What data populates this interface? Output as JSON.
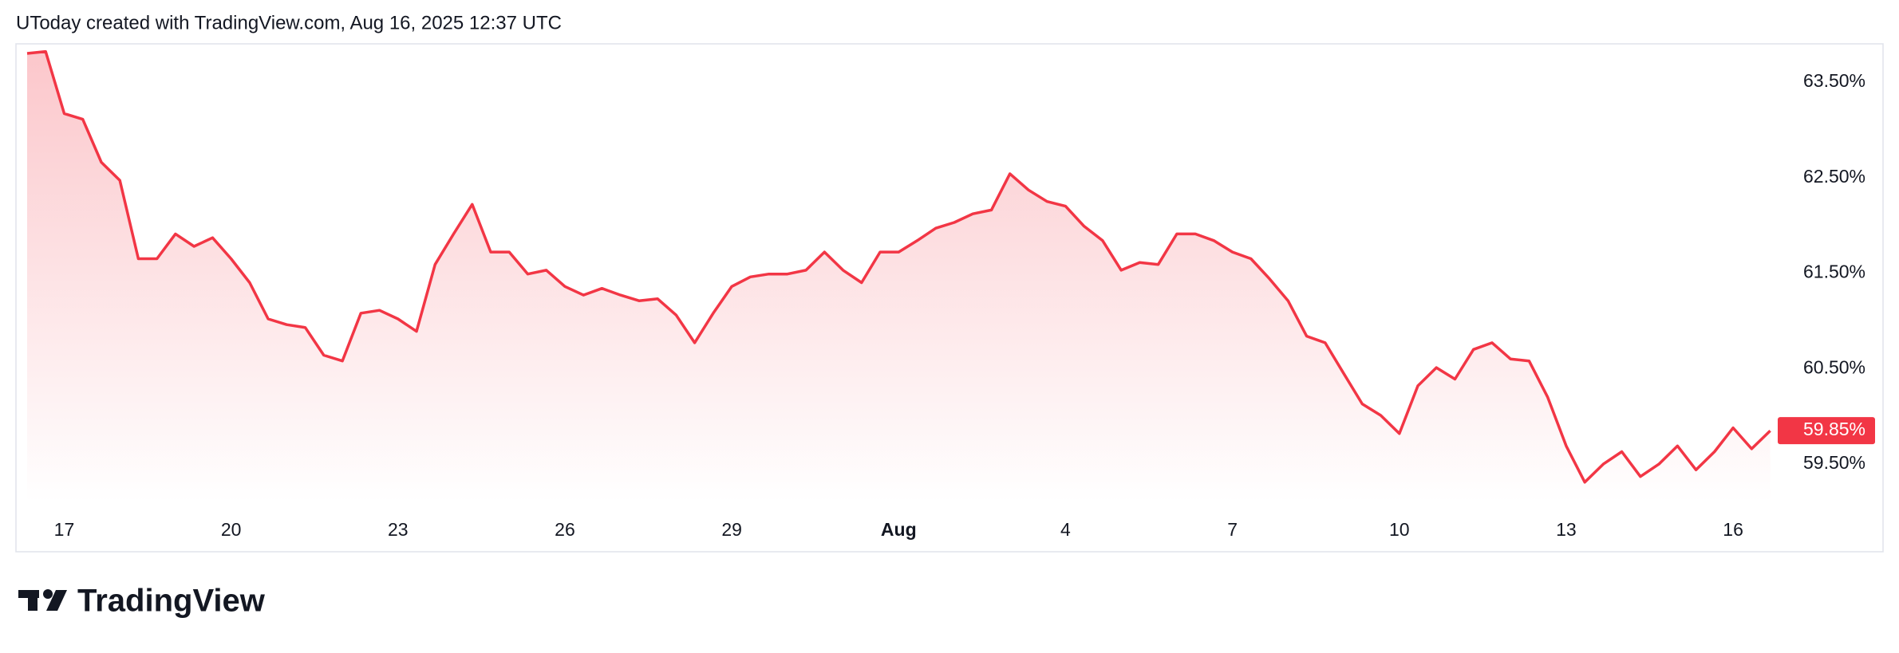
{
  "chart_data": {
    "type": "area",
    "title": "UToday created with TradingView.com, Aug 16, 2025 12:37 UTC",
    "brand": "TradingView",
    "categories": [
      null,
      null,
      "17",
      null,
      null,
      null,
      null,
      null,
      null,
      null,
      null,
      "20",
      null,
      null,
      null,
      null,
      null,
      null,
      null,
      null,
      "23",
      null,
      null,
      null,
      null,
      null,
      null,
      null,
      null,
      "26",
      null,
      null,
      null,
      null,
      null,
      null,
      null,
      null,
      "29",
      null,
      null,
      null,
      null,
      null,
      null,
      null,
      null,
      "Aug",
      null,
      null,
      null,
      null,
      null,
      null,
      null,
      null,
      "4",
      null,
      null,
      null,
      null,
      null,
      null,
      null,
      null,
      "7",
      null,
      null,
      null,
      null,
      null,
      null,
      null,
      null,
      "10",
      null,
      null,
      null,
      null,
      null,
      null,
      null,
      null,
      "13",
      null,
      null,
      null,
      null,
      null,
      null,
      null,
      null,
      "16",
      null,
      null
    ],
    "series": [
      {
        "color": "#f23645",
        "values": [
          63.8,
          63.82,
          63.17,
          63.11,
          62.66,
          62.47,
          61.65,
          61.65,
          61.91,
          61.78,
          61.87,
          61.65,
          61.4,
          61.02,
          60.96,
          60.93,
          60.64,
          60.58,
          61.08,
          61.11,
          61.02,
          60.89,
          61.59,
          61.91,
          62.22,
          61.72,
          61.72,
          61.49,
          61.53,
          61.36,
          61.27,
          61.34,
          61.27,
          61.21,
          61.23,
          61.06,
          60.77,
          61.08,
          61.36,
          61.46,
          61.49,
          61.49,
          61.53,
          61.72,
          61.53,
          61.4,
          61.72,
          61.72,
          61.84,
          61.97,
          62.03,
          62.12,
          62.16,
          62.54,
          62.37,
          62.25,
          62.2,
          61.99,
          61.84,
          61.53,
          61.61,
          61.59,
          61.91,
          61.91,
          61.84,
          61.72,
          61.65,
          61.44,
          61.21,
          60.84,
          60.77,
          60.45,
          60.13,
          60.01,
          59.82,
          60.32,
          60.51,
          60.39,
          60.7,
          60.77,
          60.6,
          60.58,
          60.2,
          59.69,
          59.31,
          59.5,
          59.63,
          59.37,
          59.5,
          59.69,
          59.44,
          59.63,
          59.88,
          59.66,
          59.85
        ]
      }
    ],
    "current": {
      "value": 59.85,
      "label": "59.85%"
    },
    "ylim": [
      59.1,
      63.9
    ],
    "yticks": [
      {
        "value": 59.5,
        "label": "59.50%"
      },
      {
        "value": 60.5,
        "label": "60.50%"
      },
      {
        "value": 61.5,
        "label": "61.50%"
      },
      {
        "value": 62.5,
        "label": "62.50%"
      },
      {
        "value": 63.5,
        "label": "63.50%"
      }
    ],
    "grid": false
  }
}
